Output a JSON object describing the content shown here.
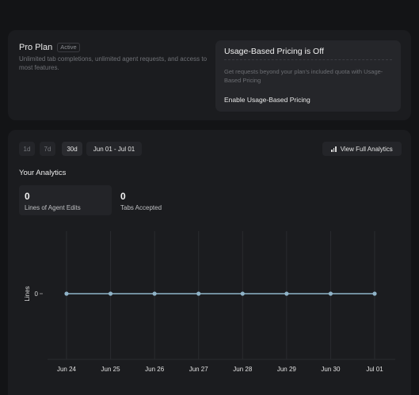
{
  "plan": {
    "title": "Pro Plan",
    "badge": "Active",
    "description": "Unlimited tab completions, unlimited agent requests, and access to most features."
  },
  "usage_pricing": {
    "title": "Usage-Based Pricing is Off",
    "description": "Get requests beyond your plan's included quota with Usage-Based Pricing",
    "button_label": "Enable Usage-Based Pricing"
  },
  "toolbar": {
    "ranges": [
      "1d",
      "7d",
      "30d"
    ],
    "active_range": "30d",
    "date_range": "Jun 01 - Jul 01",
    "view_full_label": "View Full Analytics"
  },
  "analytics": {
    "title": "Your Analytics",
    "stats": [
      {
        "value": "0",
        "label": "Lines of Agent Edits"
      },
      {
        "value": "0",
        "label": "Tabs Accepted"
      }
    ]
  },
  "colors": {
    "line": "#8fb3c8",
    "grid": "#2a2b2f"
  },
  "chart_data": {
    "type": "line",
    "categories": [
      "Jun 24",
      "Jun 25",
      "Jun 26",
      "Jun 27",
      "Jun 28",
      "Jun 29",
      "Jun 30",
      "Jul 01"
    ],
    "series": [
      {
        "values": [
          0,
          0,
          0,
          0,
          0,
          0,
          0,
          0
        ]
      }
    ],
    "ylabel": "Lines",
    "yticks": [
      "0"
    ],
    "grid": true
  }
}
